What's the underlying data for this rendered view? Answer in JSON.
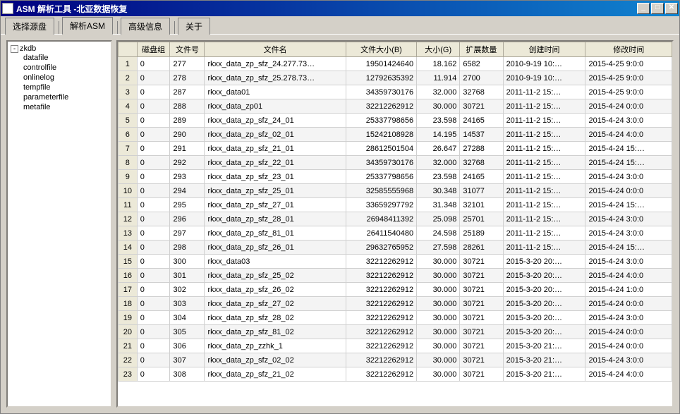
{
  "window": {
    "title": "ASM 解析工具 -北亚数据恢复"
  },
  "tabs": {
    "items": [
      {
        "label": "选择源盘",
        "active": false
      },
      {
        "label": "解析ASM",
        "active": true
      },
      {
        "label": "高级信息",
        "active": false
      },
      {
        "label": "关于",
        "active": false
      }
    ]
  },
  "tree": {
    "root": "zkdb",
    "children": [
      "datafile",
      "controlfile",
      "onlinelog",
      "tempfile",
      "parameterfile",
      "metafile"
    ]
  },
  "grid": {
    "columns": [
      "磁盘组",
      "文件号",
      "文件名",
      "文件大小(B)",
      "大小(G)",
      "扩展数量",
      "创建时间",
      "修改时间"
    ],
    "rows": [
      [
        "0",
        "277",
        "rkxx_data_zp_sfz_24.277.73…",
        "19501424640",
        "18.162",
        "6582",
        "2010-9-19 10:…",
        "2015-4-25 9:0:0"
      ],
      [
        "0",
        "278",
        "rkxx_data_zp_sfz_25.278.73…",
        "12792635392",
        "11.914",
        "2700",
        "2010-9-19 10:…",
        "2015-4-25 9:0:0"
      ],
      [
        "0",
        "287",
        "rkxx_data01",
        "34359730176",
        "32.000",
        "32768",
        "2011-11-2 15:…",
        "2015-4-25 9:0:0"
      ],
      [
        "0",
        "288",
        "rkxx_data_zp01",
        "32212262912",
        "30.000",
        "30721",
        "2011-11-2 15:…",
        "2015-4-24 0:0:0"
      ],
      [
        "0",
        "289",
        "rkxx_data_zp_sfz_24_01",
        "25337798656",
        "23.598",
        "24165",
        "2011-11-2 15:…",
        "2015-4-24 3:0:0"
      ],
      [
        "0",
        "290",
        "rkxx_data_zp_sfz_02_01",
        "15242108928",
        "14.195",
        "14537",
        "2011-11-2 15:…",
        "2015-4-24 4:0:0"
      ],
      [
        "0",
        "291",
        "rkxx_data_zp_sfz_21_01",
        "28612501504",
        "26.647",
        "27288",
        "2011-11-2 15:…",
        "2015-4-24 15:…"
      ],
      [
        "0",
        "292",
        "rkxx_data_zp_sfz_22_01",
        "34359730176",
        "32.000",
        "32768",
        "2011-11-2 15:…",
        "2015-4-24 15:…"
      ],
      [
        "0",
        "293",
        "rkxx_data_zp_sfz_23_01",
        "25337798656",
        "23.598",
        "24165",
        "2011-11-2 15:…",
        "2015-4-24 3:0:0"
      ],
      [
        "0",
        "294",
        "rkxx_data_zp_sfz_25_01",
        "32585555968",
        "30.348",
        "31077",
        "2011-11-2 15:…",
        "2015-4-24 0:0:0"
      ],
      [
        "0",
        "295",
        "rkxx_data_zp_sfz_27_01",
        "33659297792",
        "31.348",
        "32101",
        "2011-11-2 15:…",
        "2015-4-24 15:…"
      ],
      [
        "0",
        "296",
        "rkxx_data_zp_sfz_28_01",
        "26948411392",
        "25.098",
        "25701",
        "2011-11-2 15:…",
        "2015-4-24 3:0:0"
      ],
      [
        "0",
        "297",
        "rkxx_data_zp_sfz_81_01",
        "26411540480",
        "24.598",
        "25189",
        "2011-11-2 15:…",
        "2015-4-24 3:0:0"
      ],
      [
        "0",
        "298",
        "rkxx_data_zp_sfz_26_01",
        "29632765952",
        "27.598",
        "28261",
        "2011-11-2 15:…",
        "2015-4-24 15:…"
      ],
      [
        "0",
        "300",
        "rkxx_data03",
        "32212262912",
        "30.000",
        "30721",
        "2015-3-20 20:…",
        "2015-4-24 3:0:0"
      ],
      [
        "0",
        "301",
        "rkxx_data_zp_sfz_25_02",
        "32212262912",
        "30.000",
        "30721",
        "2015-3-20 20:…",
        "2015-4-24 4:0:0"
      ],
      [
        "0",
        "302",
        "rkxx_data_zp_sfz_26_02",
        "32212262912",
        "30.000",
        "30721",
        "2015-3-20 20:…",
        "2015-4-24 1:0:0"
      ],
      [
        "0",
        "303",
        "rkxx_data_zp_sfz_27_02",
        "32212262912",
        "30.000",
        "30721",
        "2015-3-20 20:…",
        "2015-4-24 0:0:0"
      ],
      [
        "0",
        "304",
        "rkxx_data_zp_sfz_28_02",
        "32212262912",
        "30.000",
        "30721",
        "2015-3-20 20:…",
        "2015-4-24 3:0:0"
      ],
      [
        "0",
        "305",
        "rkxx_data_zp_sfz_81_02",
        "32212262912",
        "30.000",
        "30721",
        "2015-3-20 20:…",
        "2015-4-24 0:0:0"
      ],
      [
        "0",
        "306",
        "rkxx_data_zp_zzhk_1",
        "32212262912",
        "30.000",
        "30721",
        "2015-3-20 21:…",
        "2015-4-24 0:0:0"
      ],
      [
        "0",
        "307",
        "rkxx_data_zp_sfz_02_02",
        "32212262912",
        "30.000",
        "30721",
        "2015-3-20 21:…",
        "2015-4-24 3:0:0"
      ],
      [
        "0",
        "308",
        "rkxx_data_zp_sfz_21_02",
        "32212262912",
        "30.000",
        "30721",
        "2015-3-20 21:…",
        "2015-4-24 4:0:0"
      ]
    ]
  }
}
